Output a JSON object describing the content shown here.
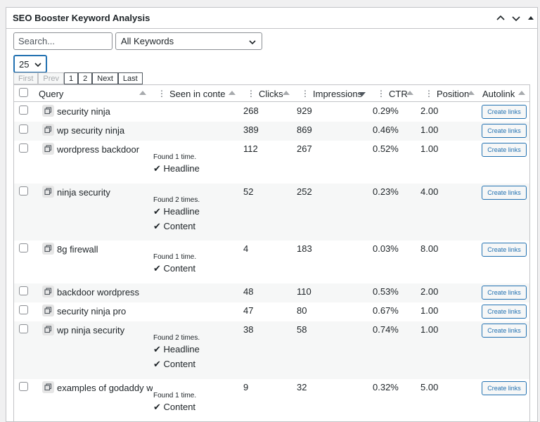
{
  "panel": {
    "title": "SEO Booster Keyword Analysis",
    "controls": [
      "chevron-up-icon",
      "chevron-down-icon",
      "triangle-up-icon"
    ]
  },
  "filters": {
    "search_placeholder": "Search...",
    "keyword_filter": "All Keywords",
    "per_page": "25"
  },
  "pagination": {
    "first": "First",
    "prev": "Prev",
    "page1": "1",
    "page2": "2",
    "next": "Next",
    "last": "Last"
  },
  "table": {
    "headers": {
      "query": "Query",
      "seen": "Seen in conte...",
      "clicks": "Clicks",
      "impressions": "Impressions",
      "ctr": "CTR",
      "position": "Position",
      "autolink": "Autolink"
    },
    "sorted_column": "impressions",
    "button_label": "Create links",
    "rows": [
      {
        "query": "security ninja",
        "found": "",
        "headline": "",
        "content": "",
        "clicks": "268",
        "impressions": "929",
        "ctr": "0.29%",
        "position": "2.00"
      },
      {
        "query": "wp security ninja",
        "found": "",
        "headline": "",
        "content": "",
        "clicks": "389",
        "impressions": "869",
        "ctr": "0.46%",
        "position": "1.00"
      },
      {
        "query": "wordpress backdoor",
        "found": "Found 1 time.",
        "headline": "✔ Headline",
        "content": "",
        "clicks": "112",
        "impressions": "267",
        "ctr": "0.52%",
        "position": "1.00"
      },
      {
        "query": "ninja security",
        "found": "Found 2 times.",
        "headline": "✔ Headline",
        "content": "✔ Content",
        "clicks": "52",
        "impressions": "252",
        "ctr": "0.23%",
        "position": "4.00"
      },
      {
        "query": "8g firewall",
        "found": "Found 1 time.",
        "headline": "",
        "content": "✔ Content",
        "clicks": "4",
        "impressions": "183",
        "ctr": "0.03%",
        "position": "8.00"
      },
      {
        "query": "backdoor wordpress",
        "found": "",
        "headline": "",
        "content": "",
        "clicks": "48",
        "impressions": "110",
        "ctr": "0.53%",
        "position": "2.00"
      },
      {
        "query": "security ninja pro",
        "found": "",
        "headline": "",
        "content": "",
        "clicks": "47",
        "impressions": "80",
        "ctr": "0.67%",
        "position": "1.00"
      },
      {
        "query": "wp ninja security",
        "found": "Found 2 times.",
        "headline": "✔ Headline",
        "content": "✔ Content",
        "clicks": "38",
        "impressions": "58",
        "ctr": "0.74%",
        "position": "1.00"
      },
      {
        "query": "examples of godaddy web",
        "found": "Found 1 time.",
        "headline": "",
        "content": "✔ Content",
        "clicks": "9",
        "impressions": "32",
        "ctr": "0.32%",
        "position": "5.00"
      }
    ]
  },
  "colors": {
    "accent": "#2271b1",
    "border": "#c3c4c7",
    "row_alt": "#f6f7f7"
  }
}
